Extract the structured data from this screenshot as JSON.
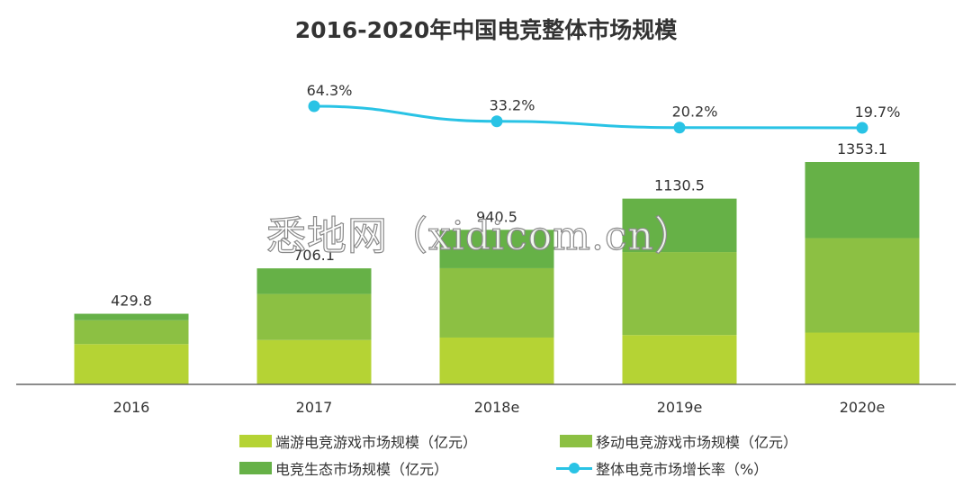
{
  "chart_data": {
    "type": "bar",
    "title": "2016-2020年中国电竞整体市场规模",
    "categories": [
      "2016",
      "2017",
      "2018e",
      "2019e",
      "2020e"
    ],
    "series": [
      {
        "name": "端游电竞游戏市场规模（亿元）",
        "values": [
          245.0,
          270.0,
          285.0,
          300.0,
          315.0
        ],
        "color": "#b5d334"
      },
      {
        "name": "移动电竞游戏市场规模（亿元）",
        "values": [
          145.0,
          280.0,
          422.0,
          505.0,
          575.0
        ],
        "color": "#8cc043"
      },
      {
        "name": "电竞生态市场规模（亿元）",
        "values": [
          39.8,
          156.1,
          233.5,
          325.5,
          463.1
        ],
        "color": "#66b147"
      }
    ],
    "totals": [
      "429.8",
      "706.1",
      "940.5",
      "1130.5",
      "1353.1"
    ],
    "growth": {
      "name": "整体电竞市场增长率（%）",
      "color": "#29c3e5",
      "values": [
        null,
        64.3,
        33.2,
        20.2,
        19.7
      ],
      "labels": [
        "",
        "64.3%",
        "33.2%",
        "20.2%",
        "19.7%"
      ]
    },
    "ylim": [
      0,
      1353.1
    ]
  },
  "watermark": "悉地网（xidicom.cn）"
}
